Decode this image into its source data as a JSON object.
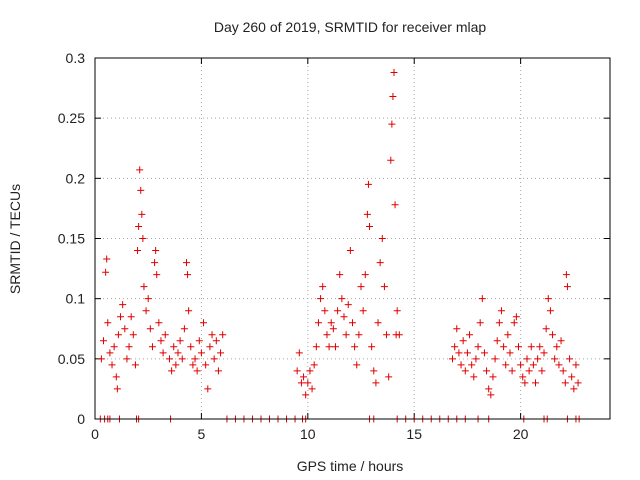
{
  "chart_data": {
    "type": "scatter",
    "title": "Day 260 of 2019, SRMTID for receiver mlap",
    "xlabel": "GPS time / hours",
    "ylabel": "SRMTID / TECUs",
    "xlim": [
      0,
      24.2
    ],
    "ylim": [
      0,
      0.3
    ],
    "x_ticks": [
      0,
      5,
      10,
      15,
      20
    ],
    "x_tick_labels": [
      "0",
      "5",
      "10",
      "15",
      "20"
    ],
    "y_ticks": [
      0,
      0.05,
      0.1,
      0.15,
      0.2,
      0.25,
      0.3
    ],
    "y_tick_labels": [
      "0",
      "0.05",
      "0.1",
      "0.15",
      "0.2",
      "0.25",
      "0.3"
    ],
    "grid": true,
    "marker": "+",
    "color": "#e00000",
    "series": [
      {
        "name": "SRMTID",
        "points": [
          [
            0.25,
            0
          ],
          [
            0.45,
            0
          ],
          [
            0.6,
            0
          ],
          [
            0.7,
            0
          ],
          [
            1.15,
            0
          ],
          [
            1.95,
            0
          ],
          [
            2.05,
            0
          ],
          [
            3.55,
            0
          ],
          [
            6.2,
            0
          ],
          [
            6.6,
            0
          ],
          [
            7.0,
            0
          ],
          [
            7.4,
            0
          ],
          [
            7.8,
            0
          ],
          [
            8.2,
            0
          ],
          [
            8.6,
            0
          ],
          [
            9.0,
            0
          ],
          [
            9.4,
            0
          ],
          [
            9.75,
            0
          ],
          [
            9.9,
            0
          ],
          [
            12.9,
            0
          ],
          [
            13.1,
            0
          ],
          [
            14.2,
            0
          ],
          [
            14.6,
            0
          ],
          [
            15.0,
            0
          ],
          [
            15.4,
            0
          ],
          [
            15.8,
            0
          ],
          [
            16.2,
            0
          ],
          [
            16.6,
            0
          ],
          [
            17.0,
            0
          ],
          [
            17.4,
            0
          ],
          [
            18.0,
            0
          ],
          [
            18.5,
            0
          ],
          [
            20.15,
            0
          ],
          [
            21.1,
            0
          ],
          [
            21.25,
            0
          ],
          [
            22.2,
            0
          ],
          [
            22.6,
            0
          ],
          [
            22.75,
            0
          ],
          [
            0.3,
            0.05
          ],
          [
            0.4,
            0.065
          ],
          [
            0.5,
            0.122
          ],
          [
            0.55,
            0.133
          ],
          [
            0.6,
            0.08
          ],
          [
            0.7,
            0.055
          ],
          [
            0.8,
            0.045
          ],
          [
            0.9,
            0.06
          ],
          [
            1.0,
            0.035
          ],
          [
            1.05,
            0.025
          ],
          [
            1.1,
            0.07
          ],
          [
            1.2,
            0.085
          ],
          [
            1.3,
            0.095
          ],
          [
            1.4,
            0.075
          ],
          [
            1.5,
            0.05
          ],
          [
            1.6,
            0.06
          ],
          [
            1.7,
            0.085
          ],
          [
            1.8,
            0.07
          ],
          [
            1.9,
            0.045
          ],
          [
            2.0,
            0.14
          ],
          [
            2.05,
            0.16
          ],
          [
            2.1,
            0.207
          ],
          [
            2.15,
            0.19
          ],
          [
            2.2,
            0.17
          ],
          [
            2.25,
            0.15
          ],
          [
            2.3,
            0.11
          ],
          [
            2.4,
            0.09
          ],
          [
            2.5,
            0.1
          ],
          [
            2.6,
            0.075
          ],
          [
            2.7,
            0.06
          ],
          [
            2.8,
            0.13
          ],
          [
            2.85,
            0.14
          ],
          [
            2.9,
            0.12
          ],
          [
            3.0,
            0.08
          ],
          [
            3.1,
            0.065
          ],
          [
            3.2,
            0.055
          ],
          [
            3.3,
            0.07
          ],
          [
            3.5,
            0.05
          ],
          [
            3.6,
            0.04
          ],
          [
            3.7,
            0.06
          ],
          [
            3.8,
            0.045
          ],
          [
            3.9,
            0.055
          ],
          [
            4.0,
            0.065
          ],
          [
            4.1,
            0.05
          ],
          [
            4.2,
            0.075
          ],
          [
            4.3,
            0.13
          ],
          [
            4.35,
            0.12
          ],
          [
            4.4,
            0.09
          ],
          [
            4.5,
            0.06
          ],
          [
            4.6,
            0.045
          ],
          [
            4.7,
            0.05
          ],
          [
            4.8,
            0.04
          ],
          [
            4.9,
            0.065
          ],
          [
            5.0,
            0.055
          ],
          [
            5.1,
            0.08
          ],
          [
            5.2,
            0.045
          ],
          [
            5.3,
            0.025
          ],
          [
            5.4,
            0.06
          ],
          [
            5.5,
            0.07
          ],
          [
            5.6,
            0.05
          ],
          [
            5.7,
            0.065
          ],
          [
            5.8,
            0.04
          ],
          [
            5.9,
            0.055
          ],
          [
            6.0,
            0.07
          ],
          [
            9.5,
            0.04
          ],
          [
            9.6,
            0.055
          ],
          [
            9.7,
            0.03
          ],
          [
            9.8,
            0.035
          ],
          [
            9.9,
            0.02
          ],
          [
            10.0,
            0.03
          ],
          [
            10.1,
            0.04
          ],
          [
            10.2,
            0.025
          ],
          [
            10.3,
            0.045
          ],
          [
            10.4,
            0.06
          ],
          [
            10.5,
            0.08
          ],
          [
            10.6,
            0.1
          ],
          [
            10.7,
            0.11
          ],
          [
            10.8,
            0.09
          ],
          [
            10.9,
            0.07
          ],
          [
            11.0,
            0.06
          ],
          [
            11.1,
            0.08
          ],
          [
            11.2,
            0.075
          ],
          [
            11.3,
            0.06
          ],
          [
            11.4,
            0.09
          ],
          [
            11.5,
            0.12
          ],
          [
            11.6,
            0.1
          ],
          [
            11.7,
            0.085
          ],
          [
            11.8,
            0.07
          ],
          [
            11.9,
            0.095
          ],
          [
            12.0,
            0.14
          ],
          [
            12.1,
            0.08
          ],
          [
            12.2,
            0.06
          ],
          [
            12.3,
            0.045
          ],
          [
            12.4,
            0.07
          ],
          [
            12.5,
            0.11
          ],
          [
            12.6,
            0.09
          ],
          [
            12.7,
            0.12
          ],
          [
            12.8,
            0.17
          ],
          [
            12.85,
            0.195
          ],
          [
            12.9,
            0.16
          ],
          [
            13.0,
            0.06
          ],
          [
            13.1,
            0.04
          ],
          [
            13.2,
            0.03
          ],
          [
            13.3,
            0.08
          ],
          [
            13.4,
            0.13
          ],
          [
            13.5,
            0.15
          ],
          [
            13.6,
            0.11
          ],
          [
            13.7,
            0.07
          ],
          [
            13.8,
            0.035
          ],
          [
            13.9,
            0.215
          ],
          [
            13.95,
            0.245
          ],
          [
            14.0,
            0.268
          ],
          [
            14.05,
            0.288
          ],
          [
            14.1,
            0.178
          ],
          [
            14.15,
            0.07
          ],
          [
            14.2,
            0.09
          ],
          [
            14.3,
            0.07
          ],
          [
            16.8,
            0.05
          ],
          [
            16.9,
            0.06
          ],
          [
            17.0,
            0.075
          ],
          [
            17.1,
            0.055
          ],
          [
            17.2,
            0.045
          ],
          [
            17.3,
            0.065
          ],
          [
            17.4,
            0.04
          ],
          [
            17.5,
            0.055
          ],
          [
            17.6,
            0.07
          ],
          [
            17.7,
            0.045
          ],
          [
            17.8,
            0.035
          ],
          [
            17.9,
            0.05
          ],
          [
            18.0,
            0.06
          ],
          [
            18.1,
            0.08
          ],
          [
            18.2,
            0.1
          ],
          [
            18.3,
            0.055
          ],
          [
            18.4,
            0.04
          ],
          [
            18.5,
            0.025
          ],
          [
            18.6,
            0.02
          ],
          [
            18.7,
            0.035
          ],
          [
            18.8,
            0.05
          ],
          [
            18.9,
            0.065
          ],
          [
            19.0,
            0.08
          ],
          [
            19.1,
            0.09
          ],
          [
            19.2,
            0.06
          ],
          [
            19.3,
            0.045
          ],
          [
            19.4,
            0.07
          ],
          [
            19.5,
            0.055
          ],
          [
            19.6,
            0.04
          ],
          [
            19.7,
            0.08
          ],
          [
            19.8,
            0.085
          ],
          [
            19.9,
            0.06
          ],
          [
            20.0,
            0.045
          ],
          [
            20.1,
            0.035
          ],
          [
            20.2,
            0.03
          ],
          [
            20.3,
            0.05
          ],
          [
            20.4,
            0.04
          ],
          [
            20.5,
            0.06
          ],
          [
            20.6,
            0.045
          ],
          [
            20.7,
            0.03
          ],
          [
            20.8,
            0.05
          ],
          [
            20.9,
            0.06
          ],
          [
            21.0,
            0.04
          ],
          [
            21.1,
            0.055
          ],
          [
            21.2,
            0.075
          ],
          [
            21.3,
            0.1
          ],
          [
            21.4,
            0.09
          ],
          [
            21.5,
            0.07
          ],
          [
            21.6,
            0.05
          ],
          [
            21.7,
            0.06
          ],
          [
            21.8,
            0.045
          ],
          [
            21.9,
            0.065
          ],
          [
            22.0,
            0.04
          ],
          [
            22.1,
            0.03
          ],
          [
            22.15,
            0.12
          ],
          [
            22.2,
            0.11
          ],
          [
            22.3,
            0.05
          ],
          [
            22.4,
            0.035
          ],
          [
            22.5,
            0.025
          ],
          [
            22.6,
            0.045
          ],
          [
            22.7,
            0.03
          ]
        ]
      }
    ]
  }
}
